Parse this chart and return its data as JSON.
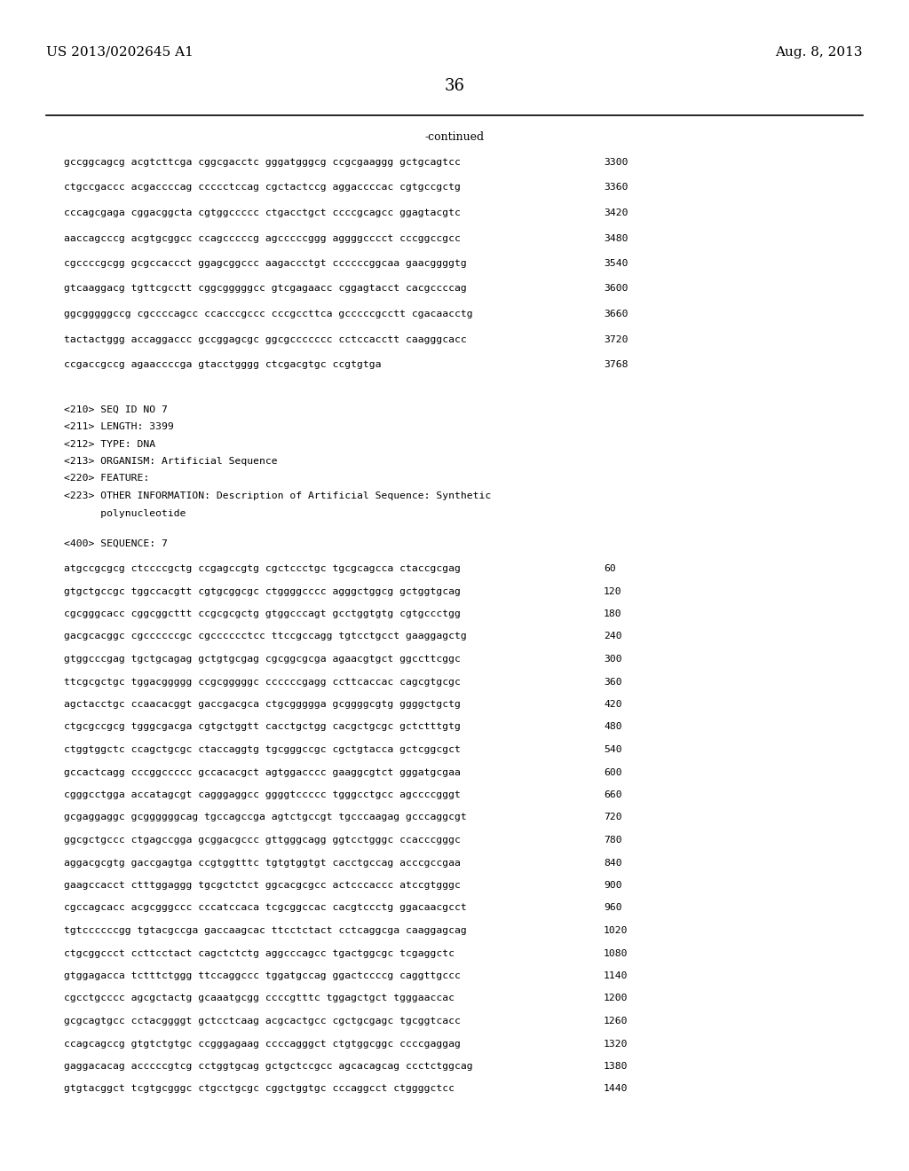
{
  "header_left": "US 2013/0202645 A1",
  "header_right": "Aug. 8, 2013",
  "page_number": "36",
  "continued_label": "-continued",
  "background_color": "#ffffff",
  "text_color": "#000000",
  "sequence_lines_top": [
    [
      "gccggcagcg acgtcttcga cggcgacctc gggatgggcg ccgcgaaggg gctgcagtcc",
      "3300"
    ],
    [
      "ctgccgaccc acgaccccag ccccctccag cgctactccg aggaccccac cgtgccgctg",
      "3360"
    ],
    [
      "cccagcgaga cggacggcta cgtggccccc ctgacctgct ccccgcagcc ggagtacgtc",
      "3420"
    ],
    [
      "aaccagcccg acgtgcggcc ccagcccccg agcccccggg aggggcccct cccggccgcc",
      "3480"
    ],
    [
      "cgccccgcgg gcgccaccct ggagcggccc aagaccctgt ccccccggcaa gaacggggtg",
      "3540"
    ],
    [
      "gtcaaggacg tgttcgcctt cggcgggggcc gtcgagaacc cggagtacct cacgccccag",
      "3600"
    ],
    [
      "ggcgggggccg cgccccagcc ccacccgccc cccgccttca gcccccgcctt cgacaacctg",
      "3660"
    ],
    [
      "tactactggg accaggaccc gccggagcgc ggcgccccccc cctccacctt caagggcacc",
      "3720"
    ],
    [
      "ccgaccgccg agaaccccga gtacctgggg ctcgacgtgc ccgtgtga",
      "3768"
    ]
  ],
  "metadata_lines": [
    "<210> SEQ ID NO 7",
    "<211> LENGTH: 3399",
    "<212> TYPE: DNA",
    "<213> ORGANISM: Artificial Sequence",
    "<220> FEATURE:",
    "<223> OTHER INFORMATION: Description of Artificial Sequence: Synthetic",
    "      polynucleotide"
  ],
  "sequence_label": "<400> SEQUENCE: 7",
  "sequence_lines_bottom": [
    [
      "atgccgcgcg ctccccgctg ccgagccgtg cgctccctgc tgcgcagcca ctaccgcgag",
      "60"
    ],
    [
      "gtgctgccgc tggccacgtt cgtgcggcgc ctggggcccc agggctggcg gctggtgcag",
      "120"
    ],
    [
      "cgcgggcacc cggcggcttt ccgcgcgctg gtggcccagt gcctggtgtg cgtgccctgg",
      "180"
    ],
    [
      "gacgcacggc cgccccccgc cgcccccctcc ttccgccagg tgtcctgcct gaaggagctg",
      "240"
    ],
    [
      "gtggcccgag tgctgcagag gctgtgcgag cgcggcgcga agaacgtgct ggccttcggc",
      "300"
    ],
    [
      "ttcgcgctgc tggacggggg ccgcgggggc ccccccgagg ccttcaccac cagcgtgcgc",
      "360"
    ],
    [
      "agctacctgc ccaacacggt gaccgacgca ctgcggggga gcggggcgtg ggggctgctg",
      "420"
    ],
    [
      "ctgcgccgcg tgggcgacga cgtgctggtt cacctgctgg cacgctgcgc gctctttgtg",
      "480"
    ],
    [
      "ctggtggctc ccagctgcgc ctaccaggtg tgcgggccgc cgctgtacca gctcggcgct",
      "540"
    ],
    [
      "gccactcagg cccggccccc gccacacgct agtggacccc gaaggcgtct gggatgcgaa",
      "600"
    ],
    [
      "cgggcctgga accatagcgt cagggaggcc ggggtccccc tgggcctgcc agccccgggt",
      "660"
    ],
    [
      "gcgaggaggc gcggggggcag tgccagccga agtctgccgt tgcccaagag gcccaggcgt",
      "720"
    ],
    [
      "ggcgctgccc ctgagccgga gcggacgccc gttgggcagg ggtcctgggc ccacccgggc",
      "780"
    ],
    [
      "aggacgcgtg gaccgagtga ccgtggtttc tgtgtggtgt cacctgccag acccgccgaa",
      "840"
    ],
    [
      "gaagccacct ctttggaggg tgcgctctct ggcacgcgcc actcccaccc atccgtgggc",
      "900"
    ],
    [
      "cgccagcacc acgcgggccc cccatccaca tcgcggccac cacgtccctg ggacaacgcct",
      "960"
    ],
    [
      "tgtccccccgg tgtacgccga gaccaagcac ttcctctact cctcaggcga caaggagcag",
      "1020"
    ],
    [
      "ctgcggccct ccttcctact cagctctctg aggcccagcc tgactggcgc tcgaggctc",
      "1080"
    ],
    [
      "gtggagacca tctttctggg ttccaggccc tggatgccag ggactccccg caggttgccc",
      "1140"
    ],
    [
      "cgcctgcccc agcgctactg gcaaatgcgg ccccgtttc tggagctgct tgggaaccac",
      "1200"
    ],
    [
      "gcgcagtgcc cctacggggt gctcctcaag acgcactgcc cgctgcgagc tgcggtcacc",
      "1260"
    ],
    [
      "ccagcagccg gtgtctgtgc ccgggagaag ccccagggct ctgtggcggc ccccgaggag",
      "1320"
    ],
    [
      "gaggacacag acccccgtcg cctggtgcag gctgctccgcc agcacagcag ccctctggcag",
      "1380"
    ],
    [
      "gtgtacggct tcgtgcgggc ctgcctgcgc cggctggtgc cccaggcct ctggggctcc",
      "1440"
    ]
  ]
}
